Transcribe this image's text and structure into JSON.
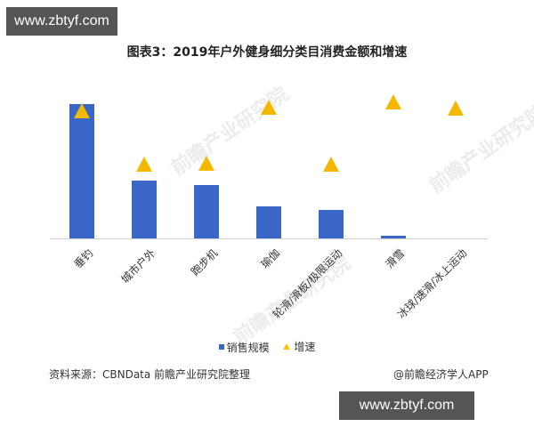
{
  "site_badge_top": "www.zbtyf.com",
  "site_badge_bottom": "www.zbtyf.com",
  "watermark_text": "前瞻产业研究院",
  "legend": {
    "bar": "销售规模",
    "marker": "增速"
  },
  "source": "资料来源：CBNData 前瞻产业研究院整理",
  "credit": "@前瞻经济学人APP",
  "colors": {
    "bar": "#3a66c8",
    "marker": "#f5b800"
  },
  "chart_data": {
    "type": "bar",
    "title": "图表3：2019年户外健身细分类目消费金额和增速",
    "xlabel": "",
    "ylabel": "",
    "y_axis_labels_shown": false,
    "grid": false,
    "legend_position": "bottom",
    "note": "No axis ticks shown; values are relative estimates in plot-pixel units (bar height above baseline; marker height above baseline).",
    "categories": [
      "垂钓",
      "城市户外",
      "跑步机",
      "瑜伽",
      "轮滑/滑板/极限运动",
      "滑雪",
      "冰球/速滑/冰上运动"
    ],
    "series": [
      {
        "name": "销售规模",
        "type": "bar",
        "values": [
          151,
          65,
          60,
          36,
          32,
          3,
          0
        ]
      },
      {
        "name": "增速",
        "type": "marker-triangle",
        "values": [
          143,
          83,
          84,
          147,
          83,
          153,
          146
        ]
      }
    ]
  }
}
